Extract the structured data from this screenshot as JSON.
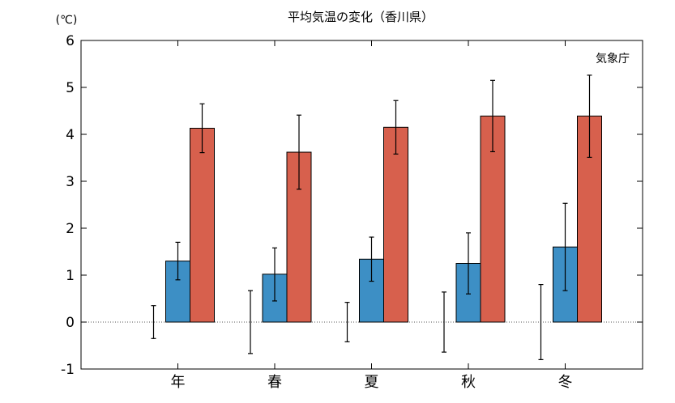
{
  "chart_data": {
    "type": "bar",
    "title": "平均気温の変化（香川県）",
    "unit_label": "(℃)",
    "source_label": "気象庁",
    "categories": [
      "年",
      "春",
      "夏",
      "秋",
      "冬"
    ],
    "ylim": [
      -1,
      6
    ],
    "yticks": [
      -1,
      0,
      1,
      2,
      3,
      4,
      5,
      6
    ],
    "grid": false,
    "zero_line": "dotted",
    "series": [
      {
        "values": [
          0,
          0,
          0,
          0,
          0
        ],
        "err_low": [
          -0.35,
          -0.67,
          -0.42,
          -0.64,
          -0.8
        ],
        "err_high": [
          0.35,
          0.67,
          0.42,
          0.64,
          0.8
        ],
        "color": "#000000"
      },
      {
        "values": [
          1.3,
          1.02,
          1.34,
          1.25,
          1.6
        ],
        "err_low": [
          0.9,
          0.45,
          0.87,
          0.6,
          0.67
        ],
        "err_high": [
          1.7,
          1.58,
          1.81,
          1.9,
          2.53
        ],
        "color": "#3d8fc5"
      },
      {
        "values": [
          4.13,
          3.62,
          4.15,
          4.39,
          4.39
        ],
        "err_low": [
          3.61,
          2.83,
          3.58,
          3.63,
          3.51
        ],
        "err_high": [
          4.65,
          4.41,
          4.72,
          5.15,
          5.26
        ],
        "color": "#d7604d"
      }
    ]
  }
}
